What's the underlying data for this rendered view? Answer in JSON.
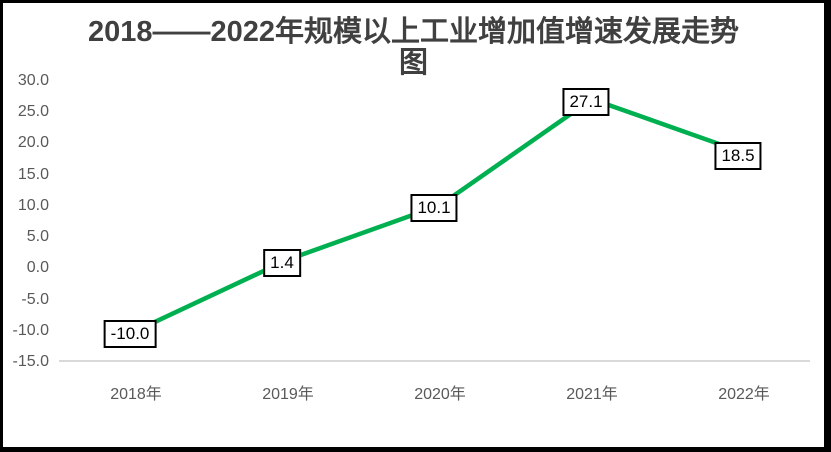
{
  "chart": {
    "title": "2018——2022年规模以上工业增加值增速发展走势图"
  },
  "chart_data": {
    "type": "line",
    "title": "2018——2022年规模以上工业增加值增速发展走势图",
    "categories": [
      "2018年",
      "2019年",
      "2020年",
      "2021年",
      "2022年"
    ],
    "values": [
      -10.0,
      1.4,
      10.1,
      27.1,
      18.5
    ],
    "data_labels": [
      "-10.0",
      "1.4",
      "10.1",
      "27.1",
      "18.5"
    ],
    "xlabel": "",
    "ylabel": "",
    "ylim": [
      -15,
      30
    ],
    "ytick_step": 5,
    "ytick_labels": [
      "30.0",
      "25.0",
      "20.0",
      "15.0",
      "10.0",
      "5.0",
      "0.0",
      "-5.0",
      "-10.0",
      "-15.0"
    ],
    "grid": false,
    "legend": "none",
    "colors": {
      "line": "#00B050",
      "title_text": "#404040",
      "axis_text": "#595959",
      "axis_line": "#D9D9D9",
      "label_box_fill": "#FFFFFF",
      "label_box_border": "#000000",
      "label_text": "#000000",
      "frame_border": "#000000"
    }
  }
}
